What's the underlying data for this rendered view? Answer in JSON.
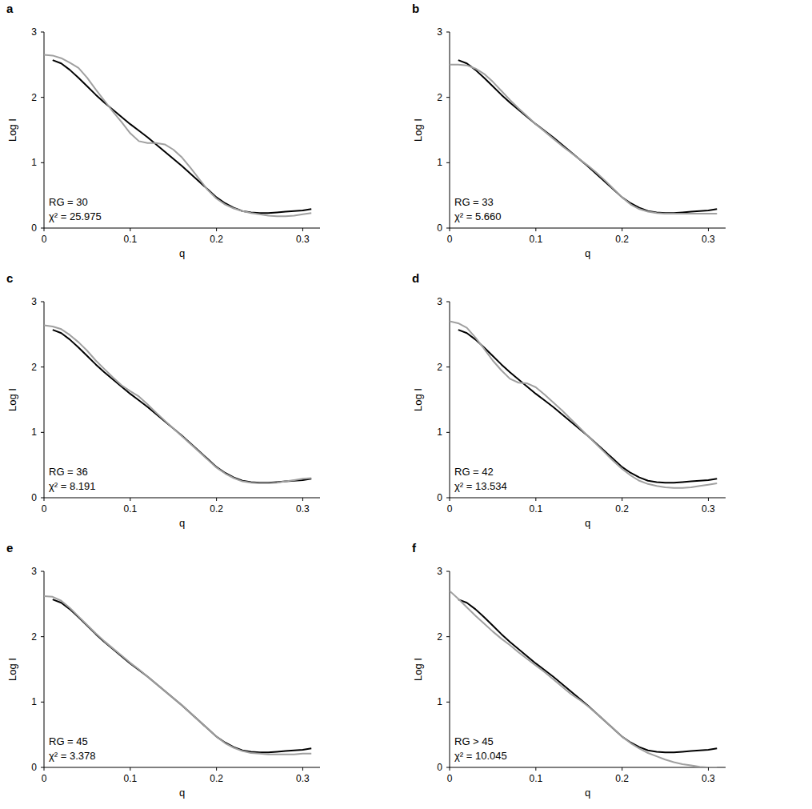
{
  "chart_data": [
    {
      "type": "line",
      "panel": "a",
      "x_label": "q",
      "y_label": "Log I",
      "annotations": [
        "RG = 30",
        "χ² = 25.975"
      ],
      "xlim": [
        0,
        0.32
      ],
      "xticks": [
        0,
        0.1,
        0.2,
        0.3
      ],
      "ylim": [
        0,
        3
      ],
      "yticks": [
        0,
        1,
        2,
        3
      ],
      "x": [
        0,
        0.01,
        0.02,
        0.03,
        0.04,
        0.05,
        0.06,
        0.07,
        0.08,
        0.09,
        0.1,
        0.11,
        0.12,
        0.13,
        0.14,
        0.15,
        0.16,
        0.17,
        0.18,
        0.19,
        0.2,
        0.21,
        0.22,
        0.23,
        0.24,
        0.25,
        0.26,
        0.27,
        0.28,
        0.29,
        0.3,
        0.31
      ],
      "series": [
        {
          "color": "#000000",
          "values": [
            null,
            2.57,
            2.52,
            2.42,
            2.3,
            2.17,
            2.04,
            1.92,
            1.81,
            1.7,
            1.59,
            1.49,
            1.39,
            1.28,
            1.17,
            1.06,
            0.95,
            0.83,
            0.71,
            0.59,
            0.47,
            0.38,
            0.31,
            0.26,
            0.24,
            0.23,
            0.23,
            0.24,
            0.25,
            0.26,
            0.27,
            0.29
          ]
        },
        {
          "color": "#a0a0a0",
          "values": [
            2.65,
            2.64,
            2.6,
            2.53,
            2.45,
            2.3,
            2.12,
            1.95,
            1.78,
            1.62,
            1.45,
            1.33,
            1.3,
            1.3,
            1.28,
            1.2,
            1.08,
            0.92,
            0.75,
            0.58,
            0.45,
            0.36,
            0.3,
            0.26,
            0.23,
            0.21,
            0.19,
            0.18,
            0.18,
            0.19,
            0.21,
            0.23
          ]
        }
      ]
    },
    {
      "type": "line",
      "panel": "b",
      "x_label": "q",
      "y_label": "Log I",
      "annotations": [
        "RG = 33",
        "χ² = 5.660"
      ],
      "xlim": [
        0,
        0.32
      ],
      "xticks": [
        0,
        0.1,
        0.2,
        0.3
      ],
      "ylim": [
        0,
        3
      ],
      "yticks": [
        0,
        1,
        2,
        3
      ],
      "x": [
        0,
        0.01,
        0.02,
        0.03,
        0.04,
        0.05,
        0.06,
        0.07,
        0.08,
        0.09,
        0.1,
        0.11,
        0.12,
        0.13,
        0.14,
        0.15,
        0.16,
        0.17,
        0.18,
        0.19,
        0.2,
        0.21,
        0.22,
        0.23,
        0.24,
        0.25,
        0.26,
        0.27,
        0.28,
        0.29,
        0.3,
        0.31
      ],
      "series": [
        {
          "color": "#000000",
          "values": [
            null,
            2.57,
            2.52,
            2.42,
            2.3,
            2.17,
            2.04,
            1.92,
            1.81,
            1.7,
            1.59,
            1.49,
            1.39,
            1.28,
            1.17,
            1.06,
            0.95,
            0.83,
            0.71,
            0.59,
            0.47,
            0.38,
            0.31,
            0.26,
            0.24,
            0.23,
            0.23,
            0.24,
            0.25,
            0.26,
            0.27,
            0.29
          ]
        },
        {
          "color": "#a0a0a0",
          "values": [
            2.5,
            2.5,
            2.49,
            2.44,
            2.36,
            2.24,
            2.1,
            1.96,
            1.83,
            1.71,
            1.59,
            1.48,
            1.37,
            1.26,
            1.16,
            1.06,
            0.96,
            0.85,
            0.73,
            0.6,
            0.47,
            0.36,
            0.29,
            0.25,
            0.23,
            0.22,
            0.22,
            0.22,
            0.22,
            0.22,
            0.22,
            0.22
          ]
        }
      ]
    },
    {
      "type": "line",
      "panel": "c",
      "x_label": "q",
      "y_label": "Log I",
      "annotations": [
        "RG = 36",
        "χ² = 8.191"
      ],
      "xlim": [
        0,
        0.32
      ],
      "xticks": [
        0,
        0.1,
        0.2,
        0.3
      ],
      "ylim": [
        0,
        3
      ],
      "yticks": [
        0,
        1,
        2,
        3
      ],
      "x": [
        0,
        0.01,
        0.02,
        0.03,
        0.04,
        0.05,
        0.06,
        0.07,
        0.08,
        0.09,
        0.1,
        0.11,
        0.12,
        0.13,
        0.14,
        0.15,
        0.16,
        0.17,
        0.18,
        0.19,
        0.2,
        0.21,
        0.22,
        0.23,
        0.24,
        0.25,
        0.26,
        0.27,
        0.28,
        0.29,
        0.3,
        0.31
      ],
      "series": [
        {
          "color": "#000000",
          "values": [
            null,
            2.57,
            2.52,
            2.42,
            2.3,
            2.17,
            2.04,
            1.92,
            1.81,
            1.7,
            1.59,
            1.49,
            1.39,
            1.28,
            1.17,
            1.06,
            0.95,
            0.83,
            0.71,
            0.59,
            0.47,
            0.38,
            0.31,
            0.26,
            0.24,
            0.23,
            0.23,
            0.24,
            0.25,
            0.26,
            0.27,
            0.29
          ]
        },
        {
          "color": "#a0a0a0",
          "values": [
            2.64,
            2.62,
            2.58,
            2.49,
            2.38,
            2.25,
            2.1,
            1.97,
            1.84,
            1.72,
            1.63,
            1.55,
            1.43,
            1.3,
            1.18,
            1.06,
            0.94,
            0.82,
            0.7,
            0.58,
            0.46,
            0.37,
            0.3,
            0.25,
            0.23,
            0.22,
            0.22,
            0.23,
            0.25,
            0.27,
            0.29,
            0.3
          ]
        }
      ]
    },
    {
      "type": "line",
      "panel": "d",
      "x_label": "q",
      "y_label": "Log I",
      "annotations": [
        "RG = 42",
        "χ² = 13.534"
      ],
      "xlim": [
        0,
        0.32
      ],
      "xticks": [
        0,
        0.1,
        0.2,
        0.3
      ],
      "ylim": [
        0,
        3
      ],
      "yticks": [
        0,
        1,
        2,
        3
      ],
      "x": [
        0,
        0.01,
        0.02,
        0.03,
        0.04,
        0.05,
        0.06,
        0.07,
        0.08,
        0.09,
        0.1,
        0.11,
        0.12,
        0.13,
        0.14,
        0.15,
        0.16,
        0.17,
        0.18,
        0.19,
        0.2,
        0.21,
        0.22,
        0.23,
        0.24,
        0.25,
        0.26,
        0.27,
        0.28,
        0.29,
        0.3,
        0.31
      ],
      "series": [
        {
          "color": "#000000",
          "values": [
            null,
            2.57,
            2.52,
            2.42,
            2.3,
            2.17,
            2.04,
            1.92,
            1.81,
            1.7,
            1.59,
            1.49,
            1.39,
            1.28,
            1.17,
            1.06,
            0.95,
            0.83,
            0.71,
            0.59,
            0.47,
            0.38,
            0.31,
            0.26,
            0.24,
            0.23,
            0.23,
            0.24,
            0.25,
            0.26,
            0.27,
            0.29
          ]
        },
        {
          "color": "#a0a0a0",
          "values": [
            2.7,
            2.67,
            2.6,
            2.45,
            2.28,
            2.1,
            1.95,
            1.82,
            1.76,
            1.75,
            1.69,
            1.58,
            1.46,
            1.34,
            1.21,
            1.08,
            0.95,
            0.82,
            0.69,
            0.56,
            0.44,
            0.34,
            0.26,
            0.21,
            0.18,
            0.16,
            0.15,
            0.15,
            0.16,
            0.18,
            0.2,
            0.22
          ]
        }
      ]
    },
    {
      "type": "line",
      "panel": "e",
      "x_label": "q",
      "y_label": "Log I",
      "annotations": [
        "RG = 45",
        "χ² = 3.378"
      ],
      "xlim": [
        0,
        0.32
      ],
      "xticks": [
        0,
        0.1,
        0.2,
        0.3
      ],
      "ylim": [
        0,
        3
      ],
      "yticks": [
        0,
        1,
        2,
        3
      ],
      "x": [
        0,
        0.01,
        0.02,
        0.03,
        0.04,
        0.05,
        0.06,
        0.07,
        0.08,
        0.09,
        0.1,
        0.11,
        0.12,
        0.13,
        0.14,
        0.15,
        0.16,
        0.17,
        0.18,
        0.19,
        0.2,
        0.21,
        0.22,
        0.23,
        0.24,
        0.25,
        0.26,
        0.27,
        0.28,
        0.29,
        0.3,
        0.31
      ],
      "series": [
        {
          "color": "#000000",
          "values": [
            null,
            2.57,
            2.52,
            2.42,
            2.3,
            2.17,
            2.04,
            1.92,
            1.81,
            1.7,
            1.59,
            1.49,
            1.39,
            1.28,
            1.17,
            1.06,
            0.95,
            0.83,
            0.71,
            0.59,
            0.47,
            0.38,
            0.31,
            0.26,
            0.24,
            0.23,
            0.23,
            0.24,
            0.25,
            0.26,
            0.27,
            0.29
          ]
        },
        {
          "color": "#a0a0a0",
          "values": [
            2.62,
            2.61,
            2.55,
            2.44,
            2.31,
            2.18,
            2.05,
            1.93,
            1.82,
            1.71,
            1.6,
            1.5,
            1.39,
            1.28,
            1.17,
            1.06,
            0.95,
            0.83,
            0.71,
            0.59,
            0.47,
            0.37,
            0.3,
            0.25,
            0.22,
            0.21,
            0.2,
            0.2,
            0.2,
            0.2,
            0.21,
            0.21
          ]
        }
      ]
    },
    {
      "type": "line",
      "panel": "f",
      "x_label": "q",
      "y_label": "Log I",
      "annotations": [
        "RG > 45",
        "χ² = 10.045"
      ],
      "xlim": [
        0,
        0.32
      ],
      "xticks": [
        0,
        0.1,
        0.2,
        0.3
      ],
      "ylim": [
        0,
        3
      ],
      "yticks": [
        0,
        1,
        2,
        3
      ],
      "x": [
        0,
        0.01,
        0.02,
        0.03,
        0.04,
        0.05,
        0.06,
        0.07,
        0.08,
        0.09,
        0.1,
        0.11,
        0.12,
        0.13,
        0.14,
        0.15,
        0.16,
        0.17,
        0.18,
        0.19,
        0.2,
        0.21,
        0.22,
        0.23,
        0.24,
        0.25,
        0.26,
        0.27,
        0.28,
        0.29,
        0.3,
        0.31
      ],
      "series": [
        {
          "color": "#000000",
          "values": [
            null,
            2.57,
            2.52,
            2.42,
            2.3,
            2.17,
            2.04,
            1.92,
            1.81,
            1.7,
            1.59,
            1.49,
            1.39,
            1.28,
            1.17,
            1.06,
            0.95,
            0.83,
            0.71,
            0.59,
            0.47,
            0.38,
            0.31,
            0.26,
            0.24,
            0.23,
            0.23,
            0.24,
            0.25,
            0.26,
            0.27,
            0.29
          ]
        },
        {
          "color": "#a0a0a0",
          "values": [
            2.7,
            2.58,
            2.45,
            2.32,
            2.2,
            2.08,
            1.97,
            1.87,
            1.76,
            1.66,
            1.56,
            1.46,
            1.35,
            1.24,
            1.13,
            1.04,
            0.94,
            0.83,
            0.71,
            0.59,
            0.47,
            0.37,
            0.29,
            0.22,
            0.17,
            0.12,
            0.08,
            0.05,
            0.03,
            0.01,
            0.0,
            0.0
          ]
        }
      ]
    }
  ]
}
